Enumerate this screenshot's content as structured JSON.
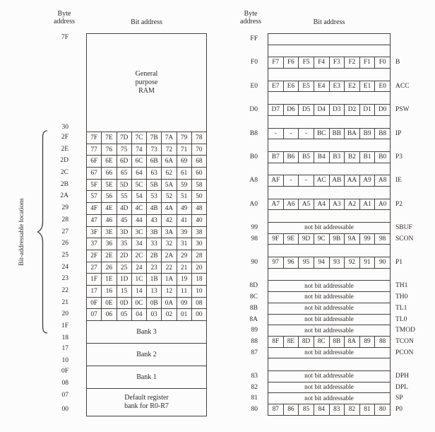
{
  "ram_map": {
    "header_byte_line1": "Byte",
    "header_byte_line2": "address",
    "header_bit": "Bit address",
    "brace_label": "Bit-addressable locations",
    "gp_top_addr": "7F",
    "gp_bottom_addr": "30",
    "gp_lines": [
      "General",
      "purpose",
      "RAM"
    ],
    "bit_rows": [
      {
        "addr": "2F",
        "bits": [
          "7F",
          "7E",
          "7D",
          "7C",
          "7B",
          "7A",
          "79",
          "78"
        ]
      },
      {
        "addr": "2E",
        "bits": [
          "77",
          "76",
          "75",
          "74",
          "73",
          "72",
          "71",
          "70"
        ]
      },
      {
        "addr": "2D",
        "bits": [
          "6F",
          "6E",
          "6D",
          "6C",
          "6B",
          "6A",
          "69",
          "68"
        ]
      },
      {
        "addr": "2C",
        "bits": [
          "67",
          "66",
          "65",
          "64",
          "63",
          "62",
          "61",
          "60"
        ]
      },
      {
        "addr": "2B",
        "bits": [
          "5F",
          "5E",
          "5D",
          "5C",
          "5B",
          "5A",
          "59",
          "58"
        ]
      },
      {
        "addr": "2A",
        "bits": [
          "57",
          "56",
          "55",
          "54",
          "53",
          "52",
          "51",
          "50"
        ]
      },
      {
        "addr": "29",
        "bits": [
          "4F",
          "4E",
          "4D",
          "4C",
          "4B",
          "4A",
          "49",
          "48"
        ]
      },
      {
        "addr": "28",
        "bits": [
          "47",
          "46",
          "45",
          "44",
          "43",
          "42",
          "41",
          "40"
        ]
      },
      {
        "addr": "27",
        "bits": [
          "3F",
          "3E",
          "3D",
          "3C",
          "3B",
          "3A",
          "39",
          "38"
        ]
      },
      {
        "addr": "26",
        "bits": [
          "37",
          "36",
          "35",
          "34",
          "33",
          "32",
          "31",
          "30"
        ]
      },
      {
        "addr": "25",
        "bits": [
          "2F",
          "2E",
          "2D",
          "2C",
          "2B",
          "2A",
          "29",
          "28"
        ]
      },
      {
        "addr": "24",
        "bits": [
          "27",
          "26",
          "25",
          "24",
          "23",
          "22",
          "21",
          "20"
        ]
      },
      {
        "addr": "23",
        "bits": [
          "1F",
          "1E",
          "1D",
          "1C",
          "1B",
          "1A",
          "19",
          "18"
        ]
      },
      {
        "addr": "22",
        "bits": [
          "17",
          "16",
          "15",
          "14",
          "13",
          "12",
          "11",
          "10"
        ]
      },
      {
        "addr": "21",
        "bits": [
          "0F",
          "0E",
          "0D",
          "0C",
          "0B",
          "0A",
          "09",
          "08"
        ]
      },
      {
        "addr": "20",
        "bits": [
          "07",
          "06",
          "05",
          "04",
          "03",
          "02",
          "01",
          "00"
        ]
      }
    ],
    "banks": [
      {
        "addr_top": "1F",
        "addr_bottom": "18",
        "label_lines": [
          "Bank 3"
        ]
      },
      {
        "addr_top": "17",
        "addr_bottom": "10",
        "label_lines": [
          "Bank 2"
        ]
      },
      {
        "addr_top": "0F",
        "addr_bottom": "08",
        "label_lines": [
          "Bank 1"
        ]
      },
      {
        "addr_top": "07",
        "addr_bottom": "00",
        "label_lines": [
          "Default register",
          "bank for R0-R7"
        ]
      }
    ]
  },
  "sfr_map": {
    "header_byte_line1": "Byte",
    "header_byte_line2": "address",
    "header_bit": "Bit address",
    "nba_text": "not bit addressable",
    "rows": [
      {
        "type": "empty",
        "addr": "FF"
      },
      {
        "type": "gap"
      },
      {
        "type": "bits",
        "addr": "F0",
        "name": "B",
        "bits": [
          "F7",
          "F6",
          "F5",
          "F4",
          "F3",
          "F2",
          "F1",
          "F0"
        ]
      },
      {
        "type": "gap"
      },
      {
        "type": "bits",
        "addr": "E0",
        "name": "ACC",
        "bits": [
          "E7",
          "E6",
          "E5",
          "E4",
          "E3",
          "E2",
          "E1",
          "E0"
        ]
      },
      {
        "type": "gap"
      },
      {
        "type": "bits",
        "addr": "D0",
        "name": "PSW",
        "bits": [
          "D7",
          "D6",
          "D5",
          "D4",
          "D3",
          "D2",
          "D1",
          "D0"
        ]
      },
      {
        "type": "gap"
      },
      {
        "type": "bits",
        "addr": "B8",
        "name": "IP",
        "bits": [
          "-",
          "-",
          "-",
          "BC",
          "BB",
          "BA",
          "B9",
          "B8"
        ]
      },
      {
        "type": "gap"
      },
      {
        "type": "bits",
        "addr": "B0",
        "name": "P3",
        "bits": [
          "B7",
          "B6",
          "B5",
          "B4",
          "B3",
          "B2",
          "B1",
          "B0"
        ]
      },
      {
        "type": "gap"
      },
      {
        "type": "bits",
        "addr": "A8",
        "name": "IE",
        "bits": [
          "AF",
          "-",
          "-",
          "AC",
          "AB",
          "AA",
          "A9",
          "A8"
        ]
      },
      {
        "type": "gap"
      },
      {
        "type": "bits",
        "addr": "A0",
        "name": "P2",
        "bits": [
          "A7",
          "A6",
          "A5",
          "A4",
          "A3",
          "A2",
          "A1",
          "A0"
        ]
      },
      {
        "type": "gap"
      },
      {
        "type": "nba",
        "addr": "99",
        "name": "SBUF"
      },
      {
        "type": "bits",
        "addr": "98",
        "name": "SCON",
        "bits": [
          "9F",
          "9E",
          "9D",
          "9C",
          "9B",
          "9A",
          "99",
          "98"
        ]
      },
      {
        "type": "gap"
      },
      {
        "type": "bits",
        "addr": "90",
        "name": "P1",
        "bits": [
          "97",
          "96",
          "95",
          "94",
          "93",
          "92",
          "91",
          "90"
        ]
      },
      {
        "type": "gap"
      },
      {
        "type": "nba",
        "addr": "8D",
        "name": "TH1"
      },
      {
        "type": "nba",
        "addr": "8C",
        "name": "TH0"
      },
      {
        "type": "nba",
        "addr": "8B",
        "name": "TL1"
      },
      {
        "type": "nba",
        "addr": "8A",
        "name": "TL0"
      },
      {
        "type": "nba",
        "addr": "89",
        "name": "TMOD"
      },
      {
        "type": "bits",
        "addr": "88",
        "name": "TCON",
        "bits": [
          "8F",
          "8E",
          "8D",
          "8C",
          "8B",
          "8A",
          "89",
          "88"
        ]
      },
      {
        "type": "nba",
        "addr": "87",
        "name": "PCON"
      },
      {
        "type": "gap"
      },
      {
        "type": "nba",
        "addr": "83",
        "name": "DPH"
      },
      {
        "type": "nba",
        "addr": "82",
        "name": "DPL"
      },
      {
        "type": "nba",
        "addr": "81",
        "name": "SP"
      },
      {
        "type": "bits",
        "addr": "80",
        "name": "P0",
        "bits": [
          "87",
          "86",
          "85",
          "84",
          "83",
          "82",
          "81",
          "80"
        ]
      }
    ]
  },
  "colors": {
    "border": "#45413d",
    "text": "#2e2825",
    "background": "#fcfcfc"
  }
}
